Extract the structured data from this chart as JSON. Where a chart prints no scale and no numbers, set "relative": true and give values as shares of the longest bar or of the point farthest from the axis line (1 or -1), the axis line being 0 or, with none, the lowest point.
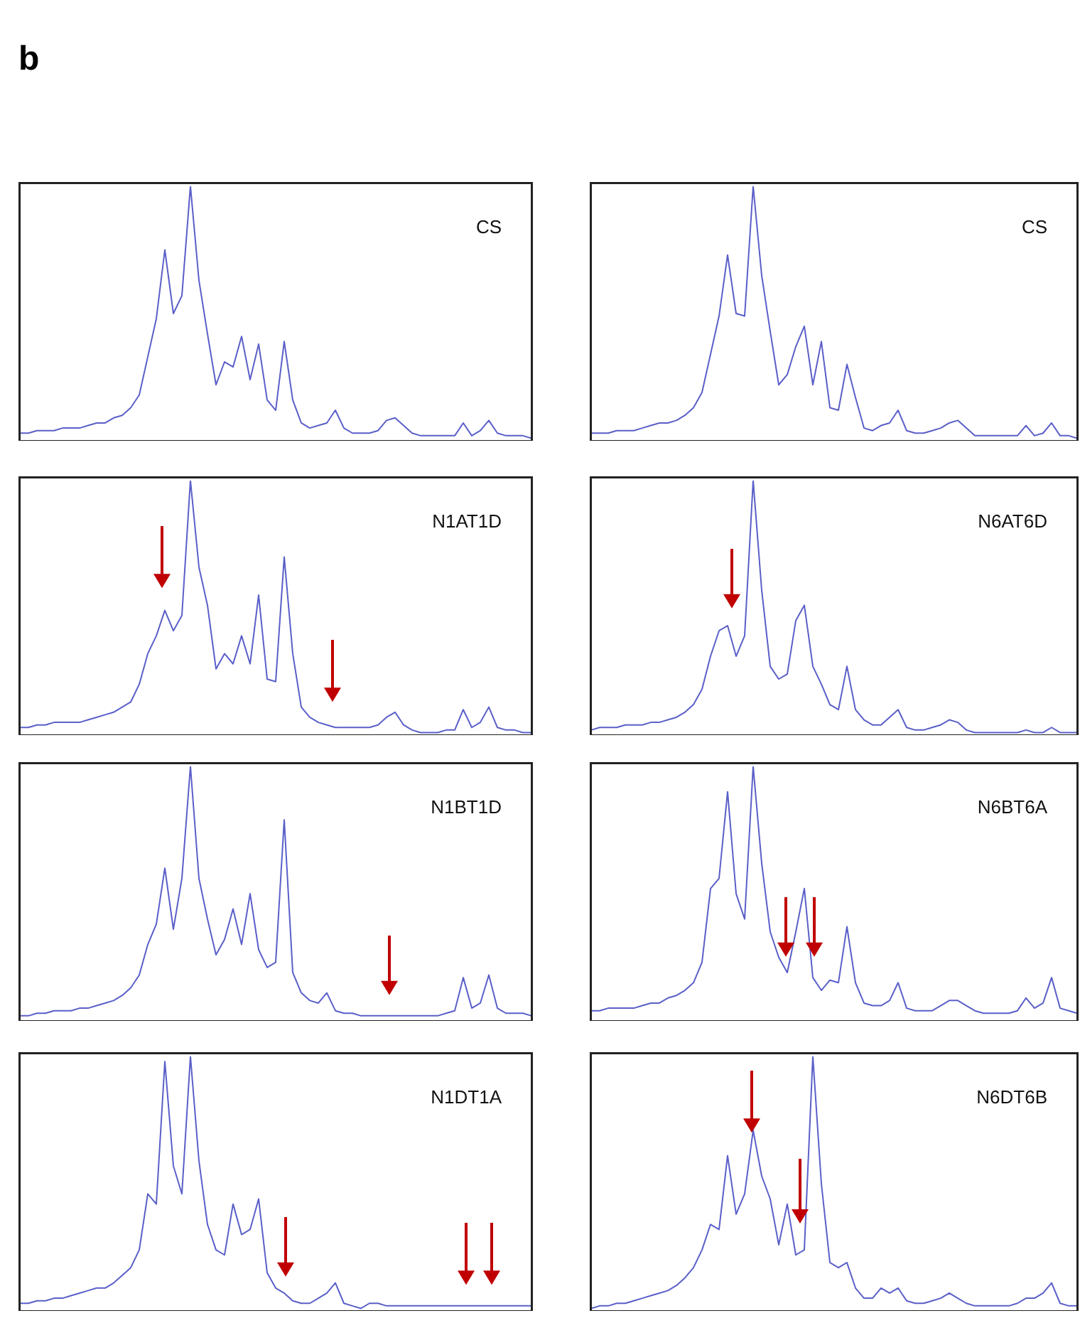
{
  "chart_data": [
    {
      "type": "line",
      "relative": true,
      "title": "CS",
      "annotations": [
        "b"
      ],
      "color": "#5a5fc8",
      "categories": [
        null,
        null,
        null,
        null,
        null,
        null,
        null,
        null,
        null,
        null,
        null,
        null,
        null,
        null,
        null,
        null,
        null,
        null,
        null,
        null,
        null,
        null,
        null,
        null,
        null,
        null,
        null,
        null,
        null,
        null,
        null,
        null,
        null,
        null,
        null,
        null,
        null,
        null,
        null,
        null,
        null,
        null,
        null,
        null,
        null,
        null,
        null,
        null,
        null,
        null,
        null,
        null,
        null,
        null,
        null,
        null,
        null,
        null,
        null,
        null,
        null
      ],
      "values": [
        0.03,
        0.03,
        0.04,
        0.04,
        0.04,
        0.05,
        0.05,
        0.05,
        0.06,
        0.07,
        0.07,
        0.09,
        0.1,
        0.13,
        0.18,
        0.33,
        0.48,
        0.75,
        0.5,
        0.57,
        1.0,
        0.63,
        0.42,
        0.22,
        0.31,
        0.29,
        0.41,
        0.24,
        0.38,
        0.16,
        0.12,
        0.39,
        0.16,
        0.07,
        0.05,
        0.06,
        0.07,
        0.12,
        0.05,
        0.03,
        0.03,
        0.03,
        0.04,
        0.08,
        0.09,
        0.06,
        0.03,
        0.02,
        0.02,
        0.02,
        0.02,
        0.02,
        0.07,
        0.02,
        0.04,
        0.08,
        0.03,
        0.02,
        0.02,
        0.02,
        0.01
      ]
    },
    {
      "type": "line",
      "relative": true,
      "title": "CS",
      "color": "#5a5fc8",
      "categories": [
        null,
        null,
        null,
        null,
        null,
        null,
        null,
        null,
        null,
        null,
        null,
        null,
        null,
        null,
        null,
        null,
        null,
        null,
        null,
        null,
        null,
        null,
        null,
        null,
        null,
        null,
        null,
        null,
        null,
        null,
        null,
        null,
        null,
        null,
        null,
        null,
        null,
        null,
        null,
        null,
        null,
        null,
        null,
        null,
        null,
        null,
        null,
        null,
        null,
        null,
        null,
        null,
        null,
        null,
        null,
        null,
        null,
        null
      ],
      "values": [
        0.03,
        0.03,
        0.03,
        0.04,
        0.04,
        0.04,
        0.05,
        0.06,
        0.07,
        0.07,
        0.08,
        0.1,
        0.13,
        0.19,
        0.34,
        0.49,
        0.73,
        0.5,
        0.49,
        1.0,
        0.65,
        0.43,
        0.22,
        0.26,
        0.37,
        0.45,
        0.22,
        0.39,
        0.13,
        0.12,
        0.3,
        0.17,
        0.05,
        0.04,
        0.06,
        0.07,
        0.12,
        0.04,
        0.03,
        0.03,
        0.04,
        0.05,
        0.07,
        0.08,
        0.05,
        0.02,
        0.02,
        0.02,
        0.02,
        0.02,
        0.02,
        0.06,
        0.02,
        0.03,
        0.07,
        0.02,
        0.02,
        0.01
      ]
    },
    {
      "type": "line",
      "relative": true,
      "title": "N1AT1D",
      "color": "#5a5fc8",
      "categories": [
        null,
        null,
        null,
        null,
        null,
        null,
        null,
        null,
        null,
        null,
        null,
        null,
        null,
        null,
        null,
        null,
        null,
        null,
        null,
        null,
        null,
        null,
        null,
        null,
        null,
        null,
        null,
        null,
        null,
        null,
        null,
        null,
        null,
        null,
        null,
        null,
        null,
        null,
        null,
        null,
        null,
        null,
        null,
        null,
        null,
        null,
        null,
        null,
        null,
        null,
        null,
        null,
        null,
        null,
        null,
        null,
        null,
        null,
        null,
        null,
        null
      ],
      "values": [
        0.03,
        0.03,
        0.04,
        0.04,
        0.05,
        0.05,
        0.05,
        0.05,
        0.06,
        0.07,
        0.08,
        0.09,
        0.11,
        0.13,
        0.2,
        0.32,
        0.39,
        0.49,
        0.41,
        0.47,
        1.0,
        0.66,
        0.51,
        0.26,
        0.32,
        0.28,
        0.39,
        0.28,
        0.55,
        0.22,
        0.21,
        0.7,
        0.32,
        0.11,
        0.07,
        0.05,
        0.04,
        0.03,
        0.03,
        0.03,
        0.03,
        0.03,
        0.04,
        0.07,
        0.09,
        0.04,
        0.02,
        0.01,
        0.01,
        0.01,
        0.02,
        0.02,
        0.1,
        0.03,
        0.05,
        0.11,
        0.03,
        0.02,
        0.02,
        0.01,
        0.01
      ]
    },
    {
      "type": "line",
      "relative": true,
      "title": "N6AT6D",
      "color": "#5a5fc8",
      "categories": [
        null,
        null,
        null,
        null,
        null,
        null,
        null,
        null,
        null,
        null,
        null,
        null,
        null,
        null,
        null,
        null,
        null,
        null,
        null,
        null,
        null,
        null,
        null,
        null,
        null,
        null,
        null,
        null,
        null,
        null,
        null,
        null,
        null,
        null,
        null,
        null,
        null,
        null,
        null,
        null,
        null,
        null,
        null,
        null,
        null,
        null,
        null,
        null,
        null,
        null,
        null,
        null,
        null,
        null,
        null,
        null,
        null,
        null
      ],
      "values": [
        0.02,
        0.03,
        0.03,
        0.03,
        0.04,
        0.04,
        0.04,
        0.05,
        0.05,
        0.06,
        0.07,
        0.09,
        0.12,
        0.18,
        0.31,
        0.41,
        0.43,
        0.31,
        0.39,
        1.0,
        0.57,
        0.27,
        0.22,
        0.24,
        0.45,
        0.51,
        0.27,
        0.2,
        0.12,
        0.1,
        0.27,
        0.1,
        0.06,
        0.04,
        0.04,
        0.07,
        0.1,
        0.03,
        0.02,
        0.02,
        0.03,
        0.04,
        0.06,
        0.05,
        0.02,
        0.01,
        0.01,
        0.01,
        0.01,
        0.01,
        0.01,
        0.02,
        0.01,
        0.01,
        0.03,
        0.01,
        0.01,
        0.01
      ]
    },
    {
      "type": "line",
      "relative": true,
      "title": "N1BT1D",
      "color": "#5a5fc8",
      "categories": [
        null,
        null,
        null,
        null,
        null,
        null,
        null,
        null,
        null,
        null,
        null,
        null,
        null,
        null,
        null,
        null,
        null,
        null,
        null,
        null,
        null,
        null,
        null,
        null,
        null,
        null,
        null,
        null,
        null,
        null,
        null,
        null,
        null,
        null,
        null,
        null,
        null,
        null,
        null,
        null,
        null,
        null,
        null,
        null,
        null,
        null,
        null,
        null,
        null,
        null,
        null,
        null,
        null,
        null,
        null,
        null,
        null,
        null,
        null,
        null,
        null
      ],
      "values": [
        0.02,
        0.02,
        0.03,
        0.03,
        0.04,
        0.04,
        0.04,
        0.05,
        0.05,
        0.06,
        0.07,
        0.08,
        0.1,
        0.13,
        0.18,
        0.3,
        0.38,
        0.6,
        0.36,
        0.56,
        1.0,
        0.56,
        0.4,
        0.26,
        0.32,
        0.44,
        0.3,
        0.5,
        0.28,
        0.21,
        0.23,
        0.79,
        0.19,
        0.11,
        0.08,
        0.07,
        0.11,
        0.04,
        0.03,
        0.03,
        0.02,
        0.02,
        0.02,
        0.02,
        0.02,
        0.02,
        0.02,
        0.02,
        0.02,
        0.02,
        0.03,
        0.04,
        0.17,
        0.05,
        0.07,
        0.18,
        0.05,
        0.03,
        0.03,
        0.03,
        0.02
      ]
    },
    {
      "type": "line",
      "relative": true,
      "title": "N6BT6A",
      "color": "#5a5fc8",
      "categories": [
        null,
        null,
        null,
        null,
        null,
        null,
        null,
        null,
        null,
        null,
        null,
        null,
        null,
        null,
        null,
        null,
        null,
        null,
        null,
        null,
        null,
        null,
        null,
        null,
        null,
        null,
        null,
        null,
        null,
        null,
        null,
        null,
        null,
        null,
        null,
        null,
        null,
        null,
        null,
        null,
        null,
        null,
        null,
        null,
        null,
        null,
        null,
        null,
        null,
        null,
        null,
        null,
        null,
        null,
        null,
        null,
        null,
        null
      ],
      "values": [
        0.04,
        0.04,
        0.05,
        0.05,
        0.05,
        0.05,
        0.06,
        0.07,
        0.07,
        0.09,
        0.1,
        0.12,
        0.15,
        0.23,
        0.52,
        0.56,
        0.9,
        0.5,
        0.4,
        1.0,
        0.62,
        0.35,
        0.25,
        0.19,
        0.35,
        0.52,
        0.17,
        0.12,
        0.16,
        0.15,
        0.37,
        0.15,
        0.07,
        0.06,
        0.06,
        0.08,
        0.15,
        0.05,
        0.04,
        0.04,
        0.04,
        0.06,
        0.08,
        0.08,
        0.06,
        0.04,
        0.03,
        0.03,
        0.03,
        0.03,
        0.04,
        0.09,
        0.05,
        0.07,
        0.17,
        0.05,
        0.04,
        0.03
      ]
    },
    {
      "type": "line",
      "relative": true,
      "title": "N1DT1A",
      "color": "#5a5fc8",
      "categories": [
        null,
        null,
        null,
        null,
        null,
        null,
        null,
        null,
        null,
        null,
        null,
        null,
        null,
        null,
        null,
        null,
        null,
        null,
        null,
        null,
        null,
        null,
        null,
        null,
        null,
        null,
        null,
        null,
        null,
        null,
        null,
        null,
        null,
        null,
        null,
        null,
        null,
        null,
        null,
        null,
        null,
        null,
        null,
        null,
        null,
        null,
        null,
        null,
        null,
        null,
        null,
        null,
        null,
        null,
        null,
        null,
        null,
        null,
        null,
        null,
        null
      ],
      "values": [
        0.03,
        0.03,
        0.04,
        0.04,
        0.05,
        0.05,
        0.06,
        0.07,
        0.08,
        0.09,
        0.09,
        0.11,
        0.14,
        0.17,
        0.24,
        0.46,
        0.42,
        0.98,
        0.57,
        0.46,
        1.0,
        0.59,
        0.34,
        0.24,
        0.22,
        0.42,
        0.3,
        0.32,
        0.44,
        0.15,
        0.09,
        0.07,
        0.04,
        0.03,
        0.03,
        0.05,
        0.07,
        0.11,
        0.03,
        0.02,
        0.01,
        0.03,
        0.03,
        0.02,
        0.02,
        0.02,
        0.02,
        0.02,
        0.02,
        0.02,
        0.02,
        0.02,
        0.02,
        0.02,
        0.02,
        0.02,
        0.02,
        0.02,
        0.02,
        0.02,
        0.02
      ]
    },
    {
      "type": "line",
      "relative": true,
      "title": "N6DT6B",
      "color": "#5a5fc8",
      "categories": [
        null,
        null,
        null,
        null,
        null,
        null,
        null,
        null,
        null,
        null,
        null,
        null,
        null,
        null,
        null,
        null,
        null,
        null,
        null,
        null,
        null,
        null,
        null,
        null,
        null,
        null,
        null,
        null,
        null,
        null,
        null,
        null,
        null,
        null,
        null,
        null,
        null,
        null,
        null,
        null,
        null,
        null,
        null,
        null,
        null,
        null,
        null,
        null,
        null,
        null,
        null,
        null,
        null,
        null,
        null,
        null,
        null,
        null
      ],
      "values": [
        0.01,
        0.02,
        0.02,
        0.03,
        0.03,
        0.04,
        0.05,
        0.06,
        0.07,
        0.08,
        0.1,
        0.13,
        0.17,
        0.24,
        0.34,
        0.32,
        0.61,
        0.38,
        0.46,
        0.71,
        0.53,
        0.44,
        0.26,
        0.42,
        0.22,
        0.24,
        1.0,
        0.5,
        0.19,
        0.17,
        0.19,
        0.09,
        0.05,
        0.05,
        0.09,
        0.07,
        0.09,
        0.04,
        0.03,
        0.03,
        0.04,
        0.05,
        0.07,
        0.05,
        0.03,
        0.02,
        0.02,
        0.02,
        0.02,
        0.02,
        0.03,
        0.05,
        0.05,
        0.07,
        0.11,
        0.03,
        0.02,
        0.02
      ]
    }
  ]
}
